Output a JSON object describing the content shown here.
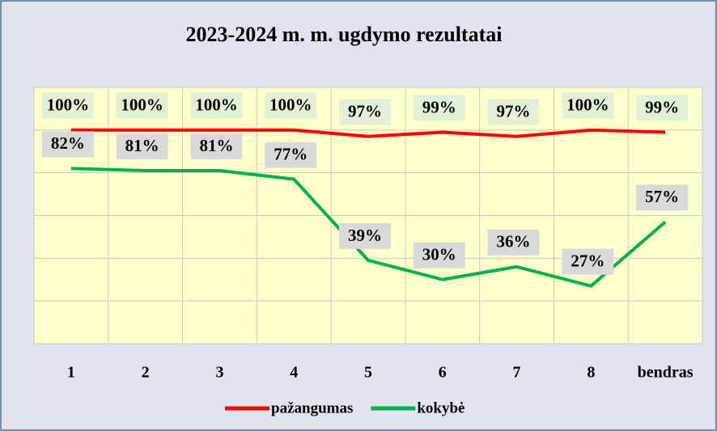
{
  "chart_data": {
    "type": "line",
    "title": "2023-2024 m. m. ugdymo rezultatai",
    "categories": [
      "1",
      "2",
      "3",
      "4",
      "5",
      "6",
      "7",
      "8",
      "bendras"
    ],
    "series": [
      {
        "name": "pažangumas",
        "color": "#ff0000",
        "values": [
          100,
          100,
          100,
          100,
          97,
          99,
          97,
          100,
          99
        ],
        "value_labels": [
          "100%",
          "100%",
          "100%",
          "100%",
          "97%",
          "99%",
          "97%",
          "100%",
          "99%"
        ]
      },
      {
        "name": "kokybė",
        "color": "#00b050",
        "values": [
          82,
          81,
          81,
          77,
          39,
          30,
          36,
          27,
          57
        ],
        "value_labels": [
          "82%",
          "81%",
          "81%",
          "77%",
          "39%",
          "30%",
          "36%",
          "27%",
          "57%"
        ]
      }
    ],
    "ylim": [
      0,
      120
    ],
    "yticks": [
      0,
      20,
      40,
      60,
      80,
      100,
      120
    ],
    "grid": true,
    "legend": "bottom"
  }
}
